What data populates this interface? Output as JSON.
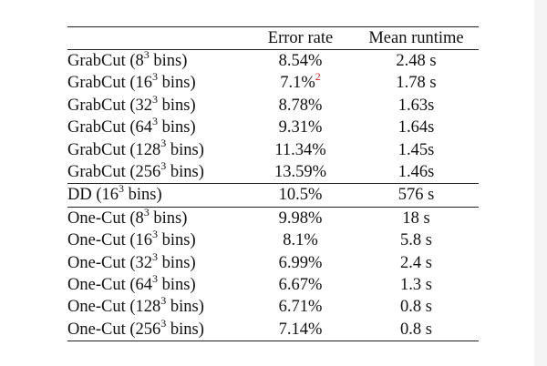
{
  "table": {
    "headers": {
      "method": "",
      "error": "Error rate",
      "runtime": "Mean runtime"
    },
    "groups": [
      {
        "name": "GrabCut",
        "rows": [
          {
            "label": "GrabCut (8",
            "exp": "3",
            "suffix": " bins)",
            "error": "8.54%",
            "footnote": "",
            "runtime": "2.48 s"
          },
          {
            "label": "GrabCut (16",
            "exp": "3",
            "suffix": " bins)",
            "error": "7.1%",
            "footnote": "2",
            "runtime": "1.78 s"
          },
          {
            "label": "GrabCut (32",
            "exp": "3",
            "suffix": " bins)",
            "error": "8.78%",
            "footnote": "",
            "runtime": "1.63s"
          },
          {
            "label": "GrabCut (64",
            "exp": "3",
            "suffix": " bins)",
            "error": "9.31%",
            "footnote": "",
            "runtime": "1.64s"
          },
          {
            "label": "GrabCut (128",
            "exp": "3",
            "suffix": " bins)",
            "error": "11.34%",
            "footnote": "",
            "runtime": "1.45s"
          },
          {
            "label": "GrabCut (256",
            "exp": "3",
            "suffix": " bins)",
            "error": "13.59%",
            "footnote": "",
            "runtime": "1.46s"
          }
        ]
      },
      {
        "name": "DD",
        "rows": [
          {
            "label": "DD (16",
            "exp": "3",
            "suffix": " bins)",
            "error": "10.5%",
            "footnote": "",
            "runtime": "576 s"
          }
        ]
      },
      {
        "name": "One-Cut",
        "rows": [
          {
            "label": "One-Cut (8",
            "exp": "3",
            "suffix": " bins)",
            "error": "9.98%",
            "footnote": "",
            "runtime": "18 s"
          },
          {
            "label": "One-Cut (16",
            "exp": "3",
            "suffix": " bins)",
            "error": "8.1%",
            "footnote": "",
            "runtime": "5.8 s"
          },
          {
            "label": "One-Cut (32",
            "exp": "3",
            "suffix": " bins)",
            "error": "6.99%",
            "footnote": "",
            "runtime": "2.4 s"
          },
          {
            "label": "One-Cut (64",
            "exp": "3",
            "suffix": " bins)",
            "error": "6.67%",
            "footnote": "",
            "runtime": "1.3 s"
          },
          {
            "label": "One-Cut (128",
            "exp": "3",
            "suffix": " bins)",
            "error": "6.71%",
            "footnote": "",
            "runtime": "0.8 s"
          },
          {
            "label": "One-Cut (256",
            "exp": "3",
            "suffix": " bins)",
            "error": "7.14%",
            "footnote": "",
            "runtime": "0.8 s"
          }
        ]
      }
    ]
  }
}
